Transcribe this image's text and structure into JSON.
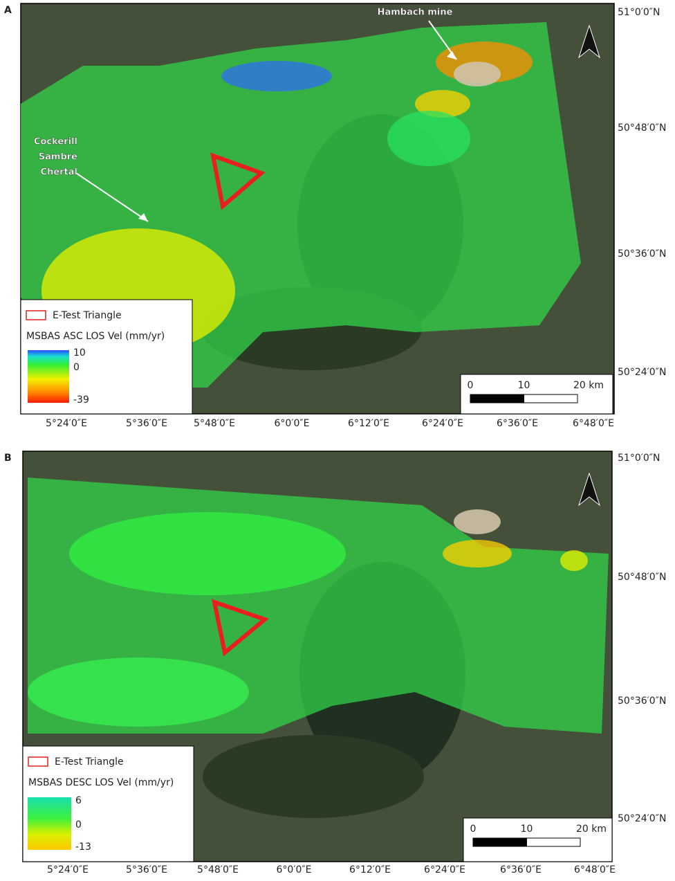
{
  "panels": [
    {
      "label": "A",
      "annotations": [
        [
          "Hambach mine"
        ],
        [
          "Cockerill",
          "Sambre",
          "Chertal"
        ]
      ],
      "legend": {
        "triangle": "E-Test Triangle",
        "title": "MSBAS ASC LOS Vel (mm/yr)",
        "scale_labels": [
          "10",
          "0",
          "-39"
        ]
      },
      "scalebar": [
        "0",
        "10",
        "20 km"
      ],
      "lat_labels": [
        "51°0′0″N",
        "50°48′0″N",
        "50°36′0″N",
        "50°24′0″N"
      ],
      "lon_labels": [
        "5°24′0″E",
        "5°36′0″E",
        "5°48′0″E",
        "6°0′0″E",
        "6°12′0″E",
        "6°24′0″E",
        "6°36′0″E",
        "6°48′0″E"
      ]
    },
    {
      "label": "B",
      "annotations": [],
      "legend": {
        "triangle": "E-Test Triangle",
        "title": "MSBAS DESC LOS Vel (mm/yr)",
        "scale_labels": [
          "6",
          "0",
          "-13"
        ]
      },
      "scalebar": [
        "0",
        "10",
        "20 km"
      ],
      "lat_labels": [
        "51°0′0″N",
        "50°48′0″N",
        "50°36′0″N",
        "50°24′0″N"
      ],
      "lon_labels": [
        "5°24′0″E",
        "5°36′0″E",
        "5°48′0″E",
        "6°0′0″E",
        "6°12′0″E",
        "6°24′0″E",
        "6°36′0″E",
        "6°48′0″E"
      ]
    }
  ]
}
